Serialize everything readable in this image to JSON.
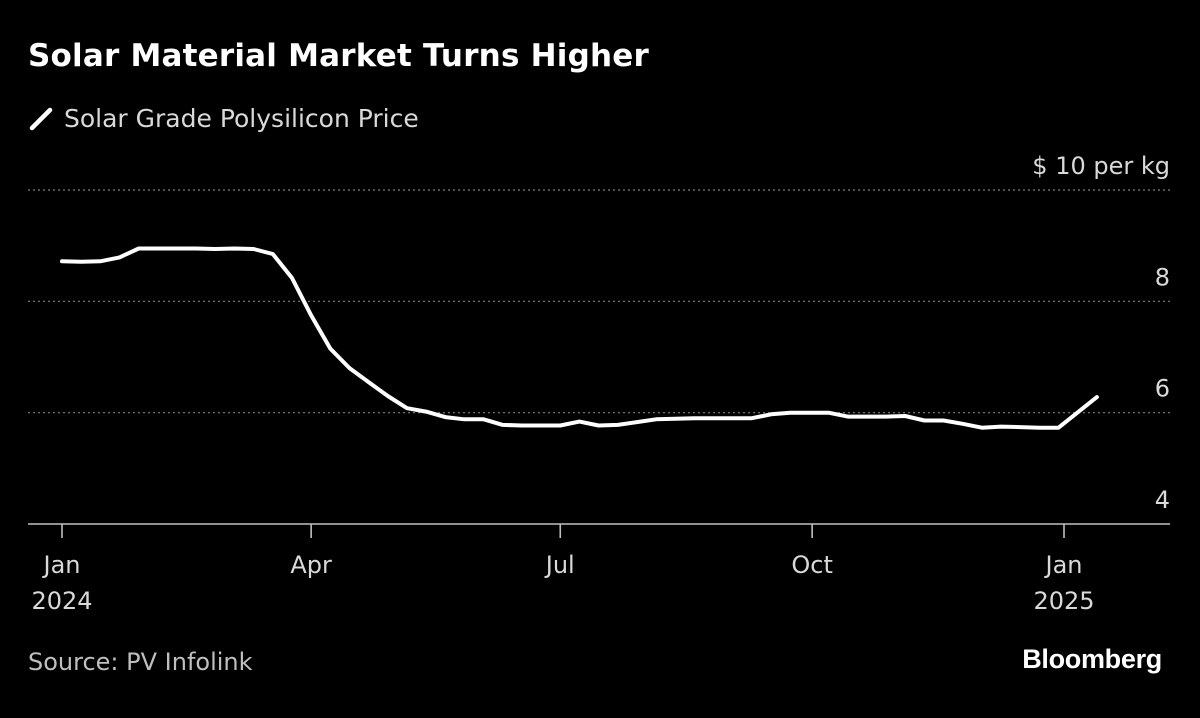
{
  "title": "Solar Material Market Turns Higher",
  "source": "Source: PV Infolink",
  "brand": "Bloomberg",
  "colors": {
    "background": "#000000",
    "line": "#ffffff",
    "grid": "#7f7f7f",
    "axis": "#bfbfbf",
    "text": "#d9d9d9"
  },
  "chart_data": {
    "type": "line",
    "series": [
      {
        "name": "Solar Grade Polysilicon Price",
        "points": [
          [
            "2024-01-01",
            8.72
          ],
          [
            "2024-01-08",
            8.71
          ],
          [
            "2024-01-15",
            8.72
          ],
          [
            "2024-01-22",
            8.79
          ],
          [
            "2024-01-29",
            8.95
          ],
          [
            "2024-02-05",
            8.95
          ],
          [
            "2024-02-12",
            8.95
          ],
          [
            "2024-02-19",
            8.95
          ],
          [
            "2024-02-26",
            8.94
          ],
          [
            "2024-03-04",
            8.95
          ],
          [
            "2024-03-11",
            8.94
          ],
          [
            "2024-03-18",
            8.85
          ],
          [
            "2024-03-25",
            8.42
          ],
          [
            "2024-04-01",
            7.75
          ],
          [
            "2024-04-08",
            7.15
          ],
          [
            "2024-04-15",
            6.8
          ],
          [
            "2024-04-22",
            6.55
          ],
          [
            "2024-04-29",
            6.3
          ],
          [
            "2024-05-06",
            6.08
          ],
          [
            "2024-05-13",
            6.02
          ],
          [
            "2024-05-20",
            5.92
          ],
          [
            "2024-05-27",
            5.88
          ],
          [
            "2024-06-03",
            5.88
          ],
          [
            "2024-06-10",
            5.78
          ],
          [
            "2024-06-17",
            5.77
          ],
          [
            "2024-06-24",
            5.77
          ],
          [
            "2024-07-01",
            5.77
          ],
          [
            "2024-07-08",
            5.84
          ],
          [
            "2024-07-15",
            5.77
          ],
          [
            "2024-07-22",
            5.78
          ],
          [
            "2024-07-29",
            5.83
          ],
          [
            "2024-08-05",
            5.88
          ],
          [
            "2024-08-12",
            5.89
          ],
          [
            "2024-08-19",
            5.9
          ],
          [
            "2024-08-26",
            5.9
          ],
          [
            "2024-09-02",
            5.9
          ],
          [
            "2024-09-09",
            5.9
          ],
          [
            "2024-09-16",
            5.97
          ],
          [
            "2024-09-23",
            6.0
          ],
          [
            "2024-09-30",
            6.0
          ],
          [
            "2024-10-07",
            6.0
          ],
          [
            "2024-10-14",
            5.93
          ],
          [
            "2024-10-21",
            5.93
          ],
          [
            "2024-10-28",
            5.93
          ],
          [
            "2024-11-04",
            5.94
          ],
          [
            "2024-11-11",
            5.86
          ],
          [
            "2024-11-18",
            5.86
          ],
          [
            "2024-11-25",
            5.8
          ],
          [
            "2024-12-02",
            5.73
          ],
          [
            "2024-12-09",
            5.75
          ],
          [
            "2024-12-16",
            5.74
          ],
          [
            "2024-12-23",
            5.73
          ],
          [
            "2024-12-30",
            5.73
          ],
          [
            "2025-01-13",
            6.28
          ]
        ]
      }
    ],
    "x_ticks": [
      {
        "date": "2024-01-01",
        "label": [
          "Jan",
          "2024"
        ]
      },
      {
        "date": "2024-04-01",
        "label": [
          "Apr"
        ]
      },
      {
        "date": "2024-07-01",
        "label": [
          "Jul"
        ]
      },
      {
        "date": "2024-10-01",
        "label": [
          "Oct"
        ]
      },
      {
        "date": "2025-01-01",
        "label": [
          "Jan",
          "2025"
        ]
      }
    ],
    "y_ticks": [
      {
        "value": 10,
        "label": "$ 10 per kg"
      },
      {
        "value": 8,
        "label": "8"
      },
      {
        "value": 6,
        "label": "6"
      },
      {
        "value": 4,
        "label": "4"
      }
    ],
    "ylim": [
      4,
      10
    ],
    "grid": true,
    "y_axis_position": "right",
    "legend_position": "top-left"
  }
}
